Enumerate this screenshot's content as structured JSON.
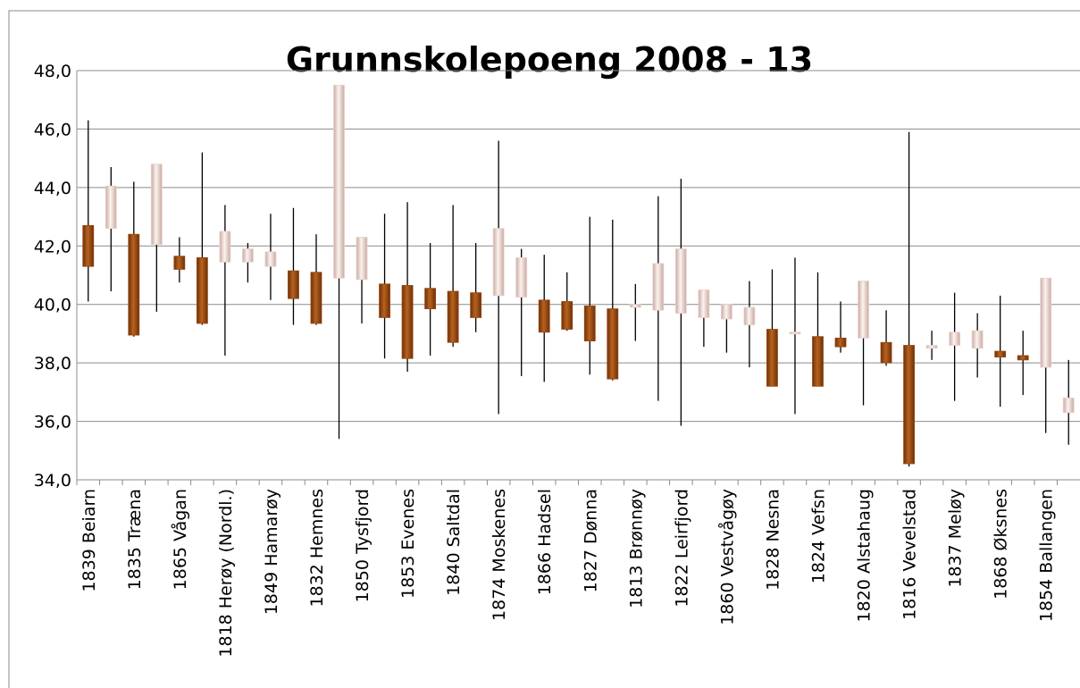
{
  "chart_data": {
    "type": "candlestick",
    "title": "Grunnskolepoeng 2008 - 13",
    "categories": [
      "1839 Beiarn",
      null,
      "1835 Træna",
      null,
      "1865 Vågan",
      null,
      "1818 Herøy (Nordl.)",
      null,
      "1849 Hamarøy",
      null,
      "1832 Hemnes",
      null,
      "1850 Tysfjord",
      null,
      "1853 Evenes",
      null,
      "1840 Saltdal",
      null,
      "1874 Moskenes",
      null,
      "1866 Hadsel",
      null,
      "1827 Dønna",
      null,
      "1813 Brønnøy",
      null,
      "1822 Leirfjord",
      null,
      "1860 Vestvågøy",
      null,
      "1828 Nesna",
      null,
      "1824 Vefsn",
      null,
      "1820 Alstahaug",
      null,
      "1816 Vevelstad",
      null,
      "1837 Meløy",
      null,
      "1868 Øksnes",
      null,
      "1854 Ballangen",
      null
    ],
    "open": [
      42.7,
      42.6,
      42.4,
      42.05,
      41.65,
      41.6,
      41.45,
      41.45,
      41.3,
      41.15,
      41.1,
      40.9,
      40.85,
      40.7,
      40.65,
      40.55,
      40.45,
      40.4,
      40.3,
      40.25,
      40.15,
      40.1,
      39.95,
      39.85,
      39.9,
      39.8,
      39.7,
      39.55,
      39.5,
      39.3,
      39.15,
      39.0,
      38.9,
      38.85,
      38.85,
      38.7,
      38.6,
      38.5,
      38.6,
      38.5,
      38.4,
      38.25,
      37.85,
      36.3
    ],
    "high": [
      46.3,
      44.7,
      44.2,
      44.8,
      42.3,
      45.2,
      43.4,
      42.1,
      43.1,
      43.3,
      42.4,
      47.5,
      42.3,
      43.1,
      43.5,
      42.1,
      43.4,
      42.1,
      45.6,
      41.9,
      41.7,
      41.1,
      43.0,
      42.9,
      40.7,
      43.7,
      44.3,
      40.5,
      40.0,
      40.8,
      41.2,
      41.6,
      41.1,
      40.1,
      40.8,
      39.8,
      45.9,
      39.1,
      40.4,
      39.7,
      40.3,
      39.1,
      40.9,
      38.1
    ],
    "low": [
      40.1,
      40.45,
      38.9,
      39.75,
      40.75,
      39.3,
      38.25,
      40.75,
      40.15,
      39.3,
      39.3,
      35.4,
      39.35,
      38.15,
      37.7,
      38.25,
      38.55,
      39.05,
      36.25,
      37.55,
      37.35,
      39.1,
      37.6,
      37.4,
      38.75,
      36.7,
      35.85,
      38.55,
      38.35,
      37.85,
      37.2,
      36.25,
      37.2,
      38.35,
      36.55,
      37.9,
      34.45,
      38.1,
      36.7,
      37.5,
      36.5,
      36.9,
      35.6,
      35.2
    ],
    "close": [
      41.3,
      44.05,
      38.95,
      44.8,
      41.2,
      39.35,
      42.5,
      41.9,
      41.8,
      40.2,
      39.35,
      47.5,
      42.3,
      39.55,
      38.15,
      39.85,
      38.7,
      39.55,
      42.6,
      41.6,
      39.05,
      39.15,
      38.75,
      37.45,
      40.0,
      41.4,
      41.9,
      40.5,
      40.0,
      39.9,
      37.2,
      39.05,
      37.2,
      38.55,
      40.8,
      38.0,
      34.55,
      38.6,
      39.05,
      39.1,
      38.2,
      38.1,
      40.9,
      36.8
    ],
    "up_color": "#e9d2cc",
    "down_color": "#96460f",
    "ylim": [
      34,
      48
    ],
    "yticks": [
      {
        "value": 34,
        "label": "34,0"
      },
      {
        "value": 36,
        "label": "36,0"
      },
      {
        "value": 38,
        "label": "38,0"
      },
      {
        "value": 40,
        "label": "40,0"
      },
      {
        "value": 42,
        "label": "42,0"
      },
      {
        "value": 44,
        "label": "44,0"
      },
      {
        "value": 46,
        "label": "46,0"
      },
      {
        "value": 48,
        "label": "48,0"
      }
    ],
    "grid": true
  }
}
